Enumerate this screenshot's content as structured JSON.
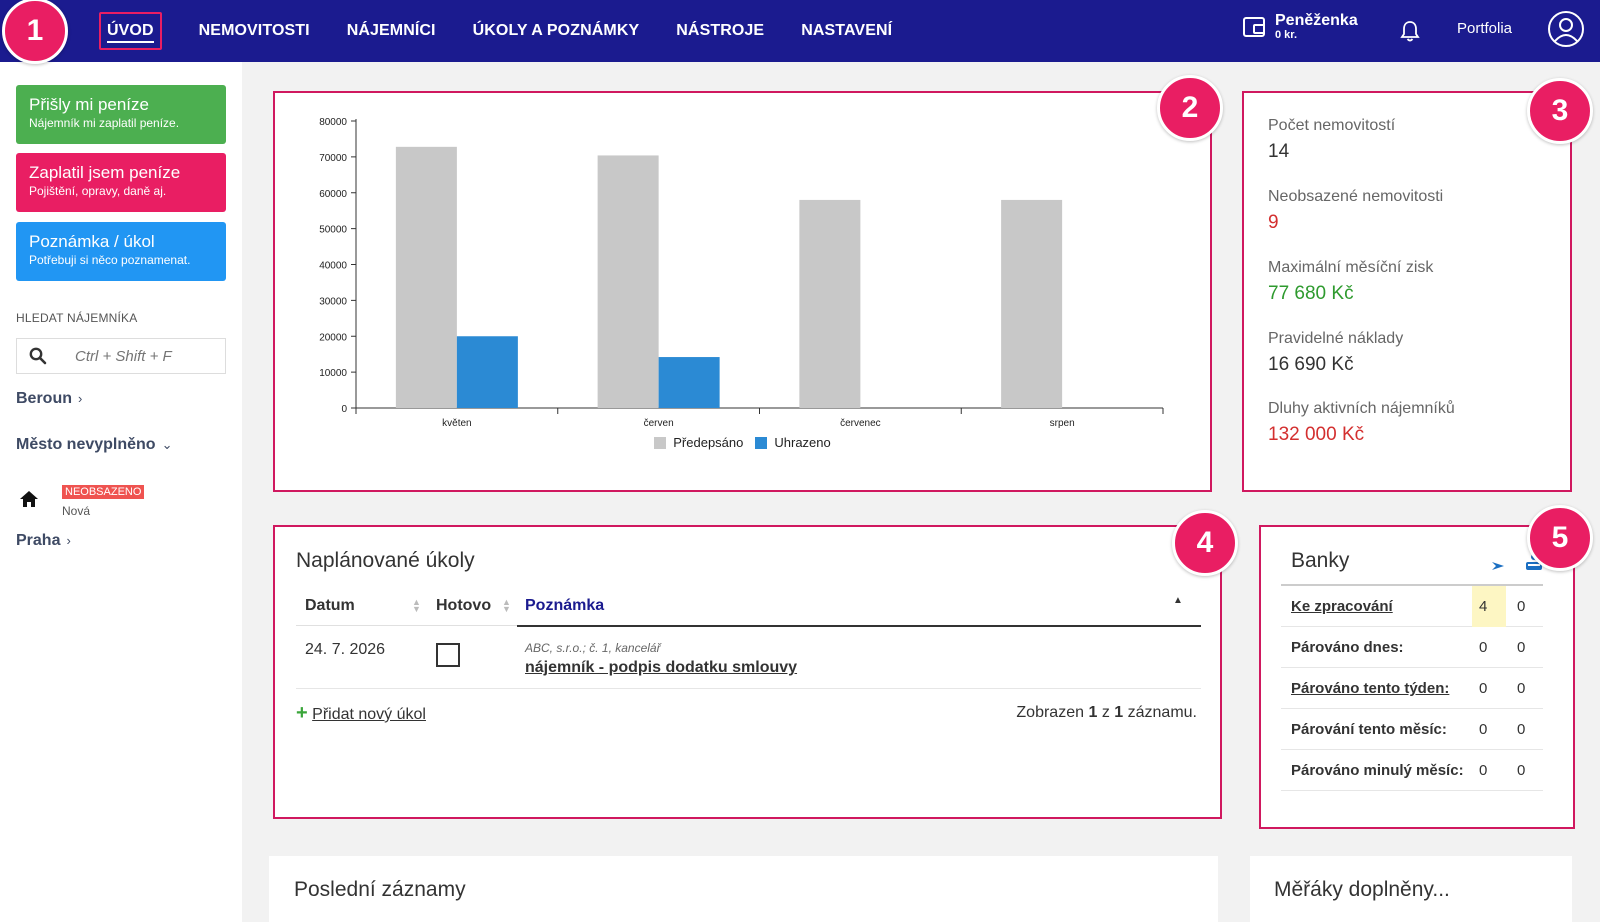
{
  "nav": {
    "items": [
      {
        "label": "ÚVOD",
        "active": true
      },
      {
        "label": "NEMOVITOSTI"
      },
      {
        "label": "NÁJEMNÍCI"
      },
      {
        "label": "ÚKOLY A POZNÁMKY"
      },
      {
        "label": "NÁSTROJE"
      },
      {
        "label": "NASTAVENÍ"
      }
    ],
    "wallet_title": "Peněženka",
    "wallet_amount": "0 kr.",
    "portfolia": "Portfolia"
  },
  "badges": [
    "1",
    "2",
    "3",
    "4",
    "5"
  ],
  "sidebar": {
    "quick_buttons": [
      {
        "title": "Přišly mi peníze",
        "subtitle": "Nájemník mi zaplatil peníze.",
        "color": "#4caf50"
      },
      {
        "title": "Zaplatil jsem peníze",
        "subtitle": "Pojištění, opravy, daně aj.",
        "color": "#e91e63"
      },
      {
        "title": "Poznámka / úkol",
        "subtitle": "Potřebuji si něco poznamenat.",
        "color": "#2196f3"
      }
    ],
    "search_label": "HLEDAT NÁJEMNÍKA",
    "search_placeholder": "Ctrl + Shift + F",
    "cities": [
      {
        "name": "Beroun",
        "chevron": "›"
      },
      {
        "name": "Město nevyplněno",
        "chevron": "⌄"
      },
      {
        "name": "Praha",
        "chevron": "›"
      }
    ],
    "property": {
      "tag": "NEOBSAZENO",
      "name": "Nová"
    }
  },
  "chart_data": {
    "type": "bar",
    "categories": [
      "květen",
      "červen",
      "červenec",
      "srpen"
    ],
    "series": [
      {
        "name": "Předepsáno",
        "color": "#c8c8c8",
        "values": [
          72800,
          70400,
          58000,
          58000
        ]
      },
      {
        "name": "Uhrazeno",
        "color": "#2b8ad4",
        "values": [
          20000,
          14200,
          0,
          0
        ]
      }
    ],
    "ylim": [
      0,
      80000
    ],
    "yticks": [
      "0",
      "10000",
      "20000",
      "30000",
      "40000",
      "50000",
      "60000",
      "70000",
      "80000"
    ],
    "legend_position": "bottom",
    "grid": false
  },
  "stats": [
    {
      "label": "Počet nemovitostí",
      "value": "14",
      "color": "#333333"
    },
    {
      "label": "Neobsazené nemovitosti",
      "value": "9",
      "color": "#d32f2f"
    },
    {
      "label": "Maximální měsíční zisk",
      "value": "77 680 Kč",
      "color": "#2e9a2e"
    },
    {
      "label": "Pravidelné náklady",
      "value": "16 690 Kč",
      "color": "#333333"
    },
    {
      "label": "Dluhy aktivních nájemníků",
      "value": "132 000 Kč",
      "color": "#d32f2f"
    }
  ],
  "tasks": {
    "title": "Naplánované úkoly",
    "columns": [
      "Datum",
      "Hotovo",
      "Poznámka"
    ],
    "rows": [
      {
        "date": "24. 7. 2026",
        "done": false,
        "meta": "ABC, s.r.o.; č. 1, kancelář",
        "note": "nájemník - podpis dodatku smlouvy"
      }
    ],
    "add_label": "Přidat nový úkol",
    "footer_prefix": "Zobrazen",
    "footer_from": "1",
    "footer_mid": "z",
    "footer_total": "1",
    "footer_suffix": "záznamu."
  },
  "banks": {
    "title": "Banky",
    "rows": [
      {
        "label": "Ke zpracování",
        "link": true,
        "v1": "4",
        "v2": "0",
        "highlight": true
      },
      {
        "label": "Párováno dnes:",
        "link": false,
        "v1": "0",
        "v2": "0"
      },
      {
        "label": "Párováno tento týden:",
        "link": true,
        "v1": "0",
        "v2": "0"
      },
      {
        "label": "Párování tento měsíc:",
        "link": false,
        "v1": "0",
        "v2": "0"
      },
      {
        "label": "Párováno minulý měsíc:",
        "link": false,
        "v1": "0",
        "v2": "0"
      }
    ]
  },
  "recent": {
    "title": "Poslední záznamy"
  },
  "meters": {
    "title": "Měřáky doplněny..."
  }
}
